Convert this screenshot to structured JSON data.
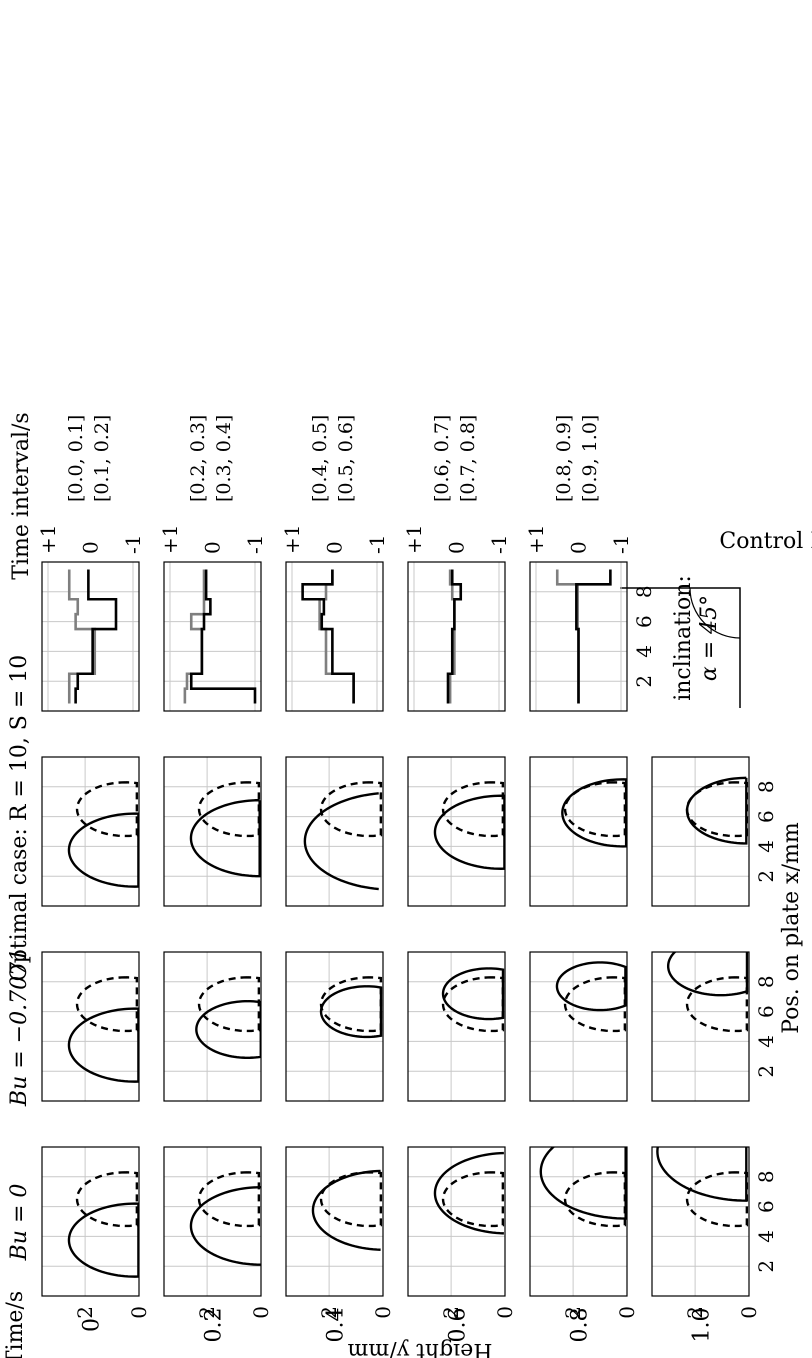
{
  "figure": {
    "time_header": "Time/s",
    "row_times": [
      "0",
      "0.2",
      "0.4",
      "0.6",
      "0.8",
      "1.0"
    ],
    "height_label": "Height y/mm",
    "position_label": "Pos. on plate x/mm",
    "column_titles": [
      "Bu = 0",
      "Bu = −0.7071",
      "Optimal case: R = 10, S = 10"
    ],
    "control_label": "Control Bu",
    "interval_header": "Time interval/s",
    "intervals_black": [
      "[0.0, 0.1]",
      "[0.2, 0.3]",
      "[0.4, 0.5]",
      "[0.6, 0.7]",
      "[0.8, 0.9]"
    ],
    "intervals_gray": [
      "[0.1, 0.2]",
      "[0.3, 0.4]",
      "[0.5, 0.6]",
      "[0.7, 0.8]",
      "[0.9, 1.0]"
    ],
    "inclination_label": "inclination:",
    "inclination_value": "α = 45°",
    "colors": {
      "interval_a": "#000000",
      "interval_b": "#7f7f7f",
      "initial_drop": "#000000",
      "grid": "#c8c8c8"
    }
  },
  "chart_data": [
    {
      "type": "line",
      "title": "Bu = 0",
      "xlabel": "Pos. on plate x/mm",
      "ylabel": "Height y/mm",
      "xlim": [
        0,
        10
      ],
      "ylim": [
        0,
        3.6
      ],
      "xticks": [
        2,
        4,
        6,
        8
      ],
      "yticks": [
        0,
        2
      ],
      "grid": true,
      "initial_drop": {
        "x_left": 4.7,
        "x_right": 8.3,
        "max_height": 2.3
      },
      "frames": [
        {
          "time": 0,
          "x_left": 1.3,
          "x_right": 6.2,
          "max_height": 2.6
        },
        {
          "time": 0.2,
          "x_left": 2.1,
          "x_right": 7.3,
          "max_height": 2.6
        },
        {
          "time": 0.4,
          "x_left": 3.1,
          "x_right": 8.4,
          "max_height": 2.6
        },
        {
          "time": 0.6,
          "x_left": 4.2,
          "x_right": 9.6,
          "max_height": 2.6
        },
        {
          "time": 0.8,
          "x_left": 5.2,
          "x_right": 11.5,
          "max_height": 3.2
        },
        {
          "time": 1.0,
          "x_left": 6.4,
          "x_right": 13.0,
          "max_height": 3.4
        }
      ]
    },
    {
      "type": "line",
      "title": "Bu = −0.7071",
      "xlabel": "Pos. on plate x/mm",
      "ylabel": "Height y/mm",
      "xlim": [
        0,
        10
      ],
      "ylim": [
        0,
        3.6
      ],
      "xticks": [
        2,
        4,
        6,
        8
      ],
      "yticks": [
        0,
        2
      ],
      "grid": true,
      "initial_drop": {
        "x_left": 4.7,
        "x_right": 8.3,
        "max_height": 2.3
      },
      "frames": [
        {
          "time": 0,
          "x_left": 1.3,
          "x_right": 6.2,
          "max_height": 2.6
        },
        {
          "time": 0.2,
          "x_left": 2.9,
          "x_right": 6.7,
          "max_height": 2.4
        },
        {
          "time": 0.4,
          "x_left": 4.3,
          "x_right": 7.7,
          "max_height": 2.3
        },
        {
          "time": 0.6,
          "x_left": 5.5,
          "x_right": 8.9,
          "max_height": 2.3
        },
        {
          "time": 0.8,
          "x_left": 6.1,
          "x_right": 9.3,
          "max_height": 2.6
        },
        {
          "time": 1.0,
          "x_left": 7.1,
          "x_right": 11.0,
          "max_height": 3.0
        }
      ]
    },
    {
      "type": "line",
      "title": "Optimal case: R = 10, S = 10",
      "xlabel": "Pos. on plate x/mm",
      "ylabel": "Height y/mm",
      "xlim": [
        0,
        10
      ],
      "ylim": [
        0,
        3.6
      ],
      "xticks": [
        2,
        4,
        6,
        8
      ],
      "yticks": [
        0,
        2
      ],
      "grid": true,
      "initial_drop": {
        "x_left": 4.7,
        "x_right": 8.3,
        "max_height": 2.3
      },
      "frames": [
        {
          "time": 0,
          "x_left": 1.3,
          "x_right": 6.2,
          "max_height": 2.6
        },
        {
          "time": 0.2,
          "x_left": 2.0,
          "x_right": 7.1,
          "max_height": 2.6
        },
        {
          "time": 0.4,
          "x_left": 1.1,
          "x_right": 7.6,
          "max_height": 2.9
        },
        {
          "time": 0.6,
          "x_left": 2.5,
          "x_right": 7.4,
          "max_height": 2.6
        },
        {
          "time": 0.8,
          "x_left": 4.0,
          "x_right": 8.5,
          "max_height": 2.4
        },
        {
          "time": 1.0,
          "x_left": 4.2,
          "x_right": 8.6,
          "max_height": 2.3
        }
      ]
    },
    {
      "type": "line",
      "title": "",
      "xlabel": "",
      "ylabel": "Control Bu",
      "xlim": [
        0,
        10
      ],
      "ylim": [
        -1,
        1
      ],
      "xticks": [
        2,
        4,
        6,
        8
      ],
      "yticks": [
        1,
        0,
        -1
      ],
      "ytick_labels": [
        "+1",
        "0",
        "-1"
      ],
      "grid": true,
      "x_cells": [
        1,
        2,
        3,
        4,
        5,
        6,
        7,
        8,
        9
      ],
      "intervals": [
        {
          "a_label": "[0.0, 0.1]",
          "b_label": "[0.1, 0.2]",
          "a": [
            0.35,
            0.3,
            -0.05,
            -0.05,
            -0.05,
            -0.6,
            -0.6,
            0.05,
            0.05
          ],
          "b": [
            0.5,
            0.5,
            -0.1,
            -0.1,
            -0.1,
            0.35,
            0.3,
            0.5,
            0.5
          ]
        },
        {
          "a_label": "[0.2, 0.3]",
          "b_label": "[0.3, 0.4]",
          "a": [
            -1.0,
            0.5,
            0.25,
            0.25,
            0.25,
            0.2,
            0.05,
            0.15,
            0.15
          ],
          "b": [
            0.65,
            0.6,
            0.25,
            0.25,
            0.25,
            0.5,
            0.2,
            0.2,
            0.2
          ]
        },
        {
          "a_label": "[0.4, 0.5]",
          "b_label": "[0.5, 0.6]",
          "a": [
            -0.45,
            -0.45,
            0.05,
            0.05,
            0.05,
            0.3,
            0.25,
            0.75,
            0.05
          ],
          "b": [
            -0.45,
            -0.45,
            0.2,
            0.2,
            0.2,
            0.35,
            0.35,
            0.2,
            0.05
          ]
        },
        {
          "a_label": "[0.6, 0.7]",
          "b_label": "[0.7, 0.8]",
          "a": [
            0.2,
            0.2,
            0.1,
            0.1,
            0.1,
            0.05,
            0.05,
            -0.1,
            0.1
          ],
          "b": [
            0.15,
            0.15,
            0.05,
            0.05,
            0.05,
            0.05,
            0.05,
            0.1,
            0.15
          ]
        },
        {
          "a_label": "[0.8, 0.9]",
          "b_label": "[0.9, 1.0]",
          "a": [
            0,
            0,
            0,
            0,
            0,
            0.05,
            0.05,
            0.05,
            -0.75
          ],
          "b": [
            0,
            0,
            0,
            0,
            0,
            0.02,
            0.02,
            0.02,
            0.5
          ]
        }
      ]
    }
  ]
}
